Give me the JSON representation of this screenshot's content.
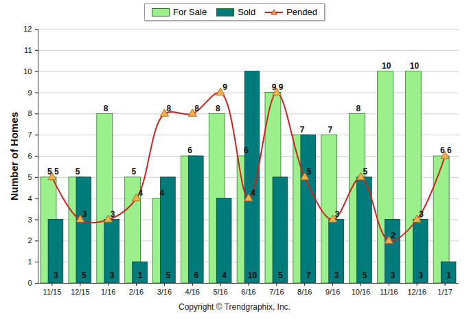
{
  "chart_data": {
    "type": "bar",
    "categories": [
      "11/15",
      "12/15",
      "1/16",
      "2/16",
      "3/16",
      "4/16",
      "5/16",
      "6/16",
      "7/16",
      "8/16",
      "9/16",
      "10/16",
      "11/16",
      "12/16",
      "1/17"
    ],
    "series": [
      {
        "name": "For Sale",
        "color": "#9cf08c",
        "values": [
          5,
          5,
          8,
          5,
          4,
          6,
          8,
          6,
          9,
          7,
          7,
          8,
          10,
          10,
          6
        ]
      },
      {
        "name": "Sold",
        "color": "#007b7b",
        "values": [
          3,
          5,
          3,
          1,
          5,
          6,
          4,
          10,
          5,
          7,
          3,
          5,
          3,
          3,
          1
        ]
      },
      {
        "name": "Pended",
        "type": "line",
        "color": "#cc2222",
        "marker": "triangle",
        "values": [
          5,
          3,
          3,
          4,
          8,
          8,
          9,
          4,
          9,
          5,
          3,
          5,
          2,
          3,
          6
        ]
      }
    ],
    "ylabel": "Number of Homes",
    "caption": "Copyright © Trendgraphix, Inc.",
    "ylim": [
      0,
      12
    ],
    "yticks": [
      0,
      1,
      2,
      3,
      4,
      5,
      6,
      7,
      8,
      9,
      10,
      11,
      12
    ],
    "grid": true,
    "data_labels": true,
    "legend": "top"
  }
}
